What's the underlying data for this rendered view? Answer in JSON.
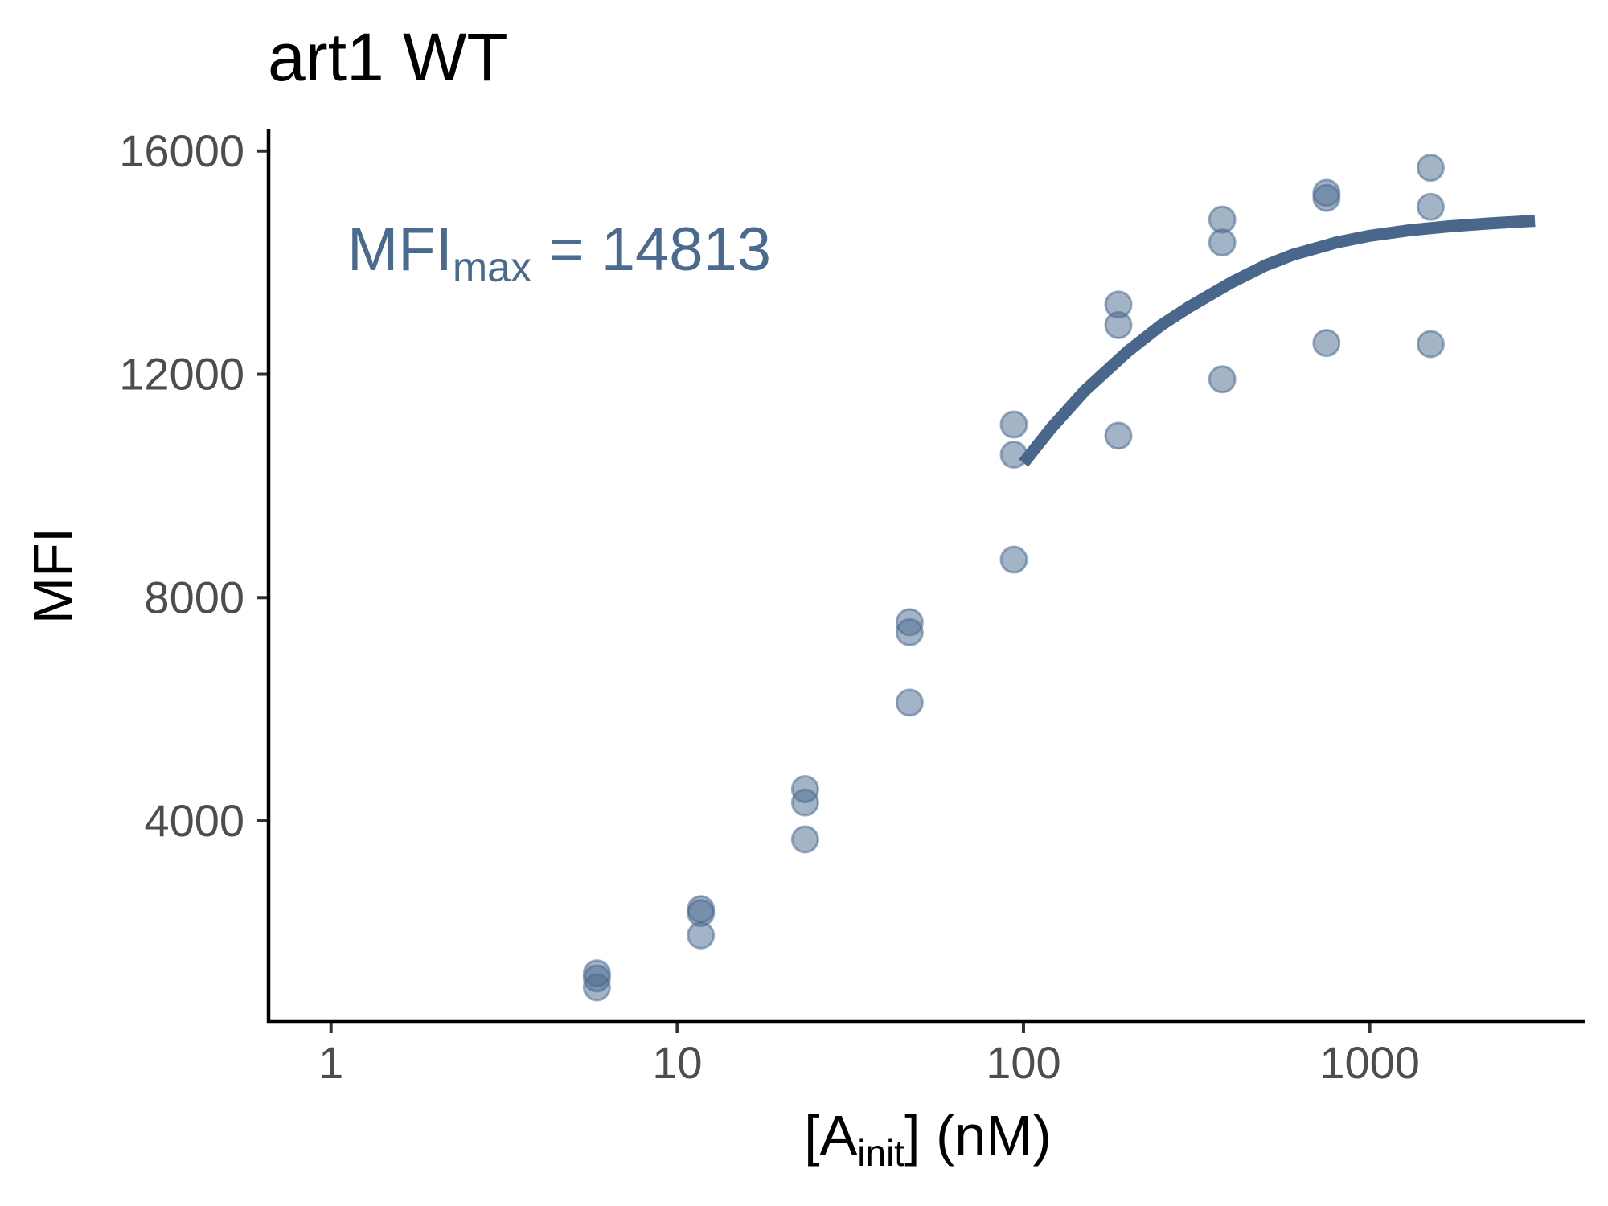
{
  "chart_data": {
    "type": "scatter",
    "title": "art1 WT",
    "xlabel": {
      "main": "[A",
      "sub": "init",
      "tail": "] (nM)"
    },
    "ylabel": "MFI",
    "x_scale": "log10",
    "xlim": [
      0.66,
      4200
    ],
    "ylim": [
      400,
      16400
    ],
    "x_ticks": [
      1,
      10,
      100,
      1000
    ],
    "x_tick_labels": [
      "1",
      "10",
      "100",
      "1000"
    ],
    "y_ticks": [
      4000,
      8000,
      12000,
      16000
    ],
    "y_tick_labels": [
      "4000",
      "8000",
      "12000",
      "16000"
    ],
    "grid": false,
    "legend": "none",
    "annotation": {
      "main": "MFI",
      "sub": "max",
      "tail": " = 14813"
    },
    "colors": {
      "points": "#4a6a8f",
      "line": "#48678b",
      "annotation": "#4a6a8f"
    },
    "points": [
      {
        "x": 5.86,
        "y": 1270
      },
      {
        "x": 5.86,
        "y": 1180
      },
      {
        "x": 5.86,
        "y": 1020
      },
      {
        "x": 11.7,
        "y": 2420
      },
      {
        "x": 11.7,
        "y": 2350
      },
      {
        "x": 11.7,
        "y": 1950
      },
      {
        "x": 23.4,
        "y": 4570
      },
      {
        "x": 23.4,
        "y": 4330
      },
      {
        "x": 23.4,
        "y": 3670
      },
      {
        "x": 46.9,
        "y": 7560
      },
      {
        "x": 46.9,
        "y": 7380
      },
      {
        "x": 46.9,
        "y": 6120
      },
      {
        "x": 93.8,
        "y": 11100
      },
      {
        "x": 93.8,
        "y": 10560
      },
      {
        "x": 93.8,
        "y": 8680
      },
      {
        "x": 188,
        "y": 13250
      },
      {
        "x": 188,
        "y": 12880
      },
      {
        "x": 188,
        "y": 10900
      },
      {
        "x": 375,
        "y": 14770
      },
      {
        "x": 375,
        "y": 14360
      },
      {
        "x": 375,
        "y": 11910
      },
      {
        "x": 750,
        "y": 15250
      },
      {
        "x": 750,
        "y": 15160
      },
      {
        "x": 750,
        "y": 12560
      },
      {
        "x": 1500,
        "y": 15700
      },
      {
        "x": 1500,
        "y": 15000
      },
      {
        "x": 1500,
        "y": 12540
      }
    ],
    "series": [
      {
        "type": "line",
        "x": [
          100,
          120,
          150,
          200,
          250,
          300,
          400,
          500,
          600,
          800,
          1000,
          1300,
          1700,
          2200,
          3000
        ],
        "y": [
          10410,
          11030,
          11700,
          12410,
          12880,
          13200,
          13650,
          13950,
          14140,
          14360,
          14480,
          14580,
          14650,
          14700,
          14750
        ]
      }
    ]
  }
}
